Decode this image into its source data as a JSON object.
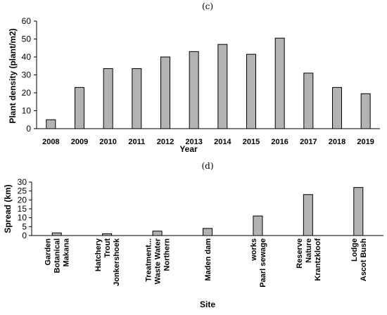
{
  "chart_data": [
    {
      "type": "bar",
      "panel_label": "(c)",
      "title": "",
      "xlabel": "Year",
      "ylabel": "Plant density (plant/m2)",
      "categories": [
        "2008",
        "2009",
        "2010",
        "2011",
        "2012",
        "2013",
        "2014",
        "2015",
        "2016",
        "2017",
        "2018",
        "2019"
      ],
      "values": [
        5,
        23,
        33.5,
        33.5,
        40,
        43,
        47,
        41.5,
        50.5,
        31,
        23,
        19.5
      ],
      "ylim": [
        0,
        60
      ],
      "yticks": [
        "0",
        "10",
        "20",
        "30",
        "40",
        "50",
        "60"
      ],
      "grid": false,
      "bar_color": "#b3b3b3"
    },
    {
      "type": "bar",
      "panel_label": "(d)",
      "title": "",
      "xlabel": "Site",
      "ylabel": "Spread (km)",
      "categories": [
        [
          "Makana",
          "Botanical",
          "Garden"
        ],
        [
          "Jonkershoek",
          "Trout",
          "Hatchery"
        ],
        [
          "Northern",
          "Waste Water",
          "Treatment..."
        ],
        [
          "Maden dam"
        ],
        [
          "Paarl sewage",
          "works"
        ],
        [
          "Krantzkloof",
          "Nature",
          "Reserve"
        ],
        [
          "Ascot Bush",
          "Lodge"
        ]
      ],
      "values": [
        1.5,
        1,
        2.5,
        4,
        11,
        23,
        27
      ],
      "ylim": [
        0,
        30
      ],
      "yticks": [
        "0",
        "5",
        "10",
        "15",
        "20",
        "25",
        "30"
      ],
      "grid": false,
      "bar_color": "#b3b3b3"
    }
  ]
}
